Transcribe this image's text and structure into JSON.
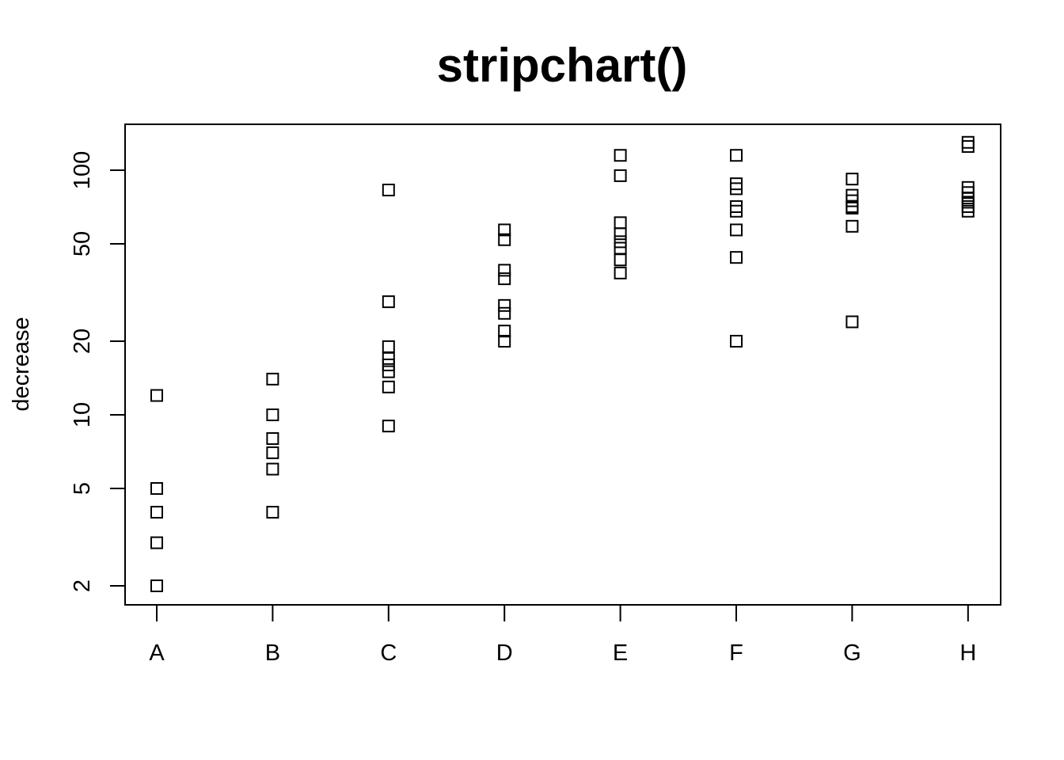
{
  "chart_data": {
    "type": "scatter",
    "title": "stripchart()",
    "xlabel": "",
    "ylabel": "decrease",
    "y_scale": "log",
    "ylim": [
      1.8,
      140
    ],
    "y_ticks": [
      2,
      5,
      10,
      20,
      50,
      100
    ],
    "y_tick_labels": [
      "2",
      "5",
      "10",
      "20",
      "50",
      "100"
    ],
    "grid": false,
    "legend": "none",
    "marker": "open-square",
    "marker_color": "#000000",
    "categories": [
      "A",
      "B",
      "C",
      "D",
      "E",
      "F",
      "G",
      "H"
    ],
    "groups": [
      {
        "category": "A",
        "values": [
          12,
          5,
          4,
          3,
          2
        ]
      },
      {
        "category": "B",
        "values": [
          14,
          10,
          8,
          7,
          6,
          4
        ]
      },
      {
        "category": "C",
        "values": [
          83,
          29,
          19,
          17,
          16,
          15,
          13,
          9
        ]
      },
      {
        "category": "D",
        "values": [
          57,
          52,
          39,
          36,
          28,
          26,
          22,
          20
        ]
      },
      {
        "category": "E",
        "values": [
          115,
          95,
          61,
          55,
          51,
          48,
          43,
          38
        ]
      },
      {
        "category": "F",
        "values": [
          115,
          88,
          84,
          71,
          68,
          57,
          44,
          20
        ]
      },
      {
        "category": "G",
        "values": [
          92,
          79,
          75,
          71,
          70,
          59,
          24
        ]
      },
      {
        "category": "H",
        "values": [
          130,
          125,
          85,
          81,
          77,
          74,
          71,
          68
        ]
      }
    ]
  }
}
